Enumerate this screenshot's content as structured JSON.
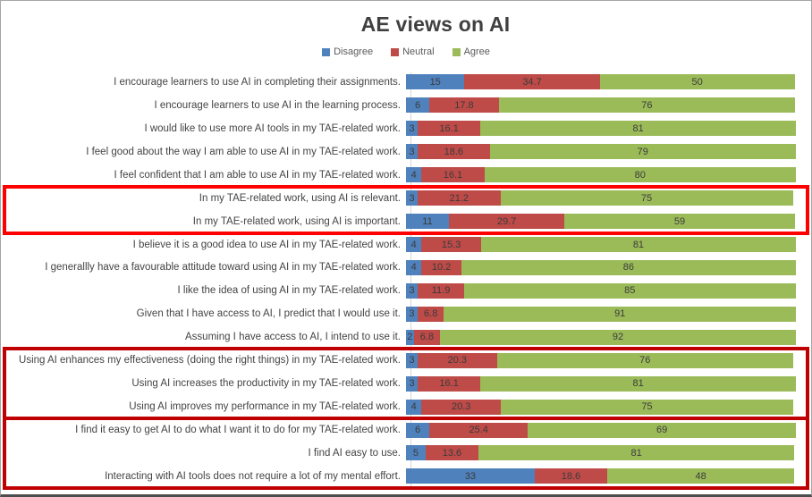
{
  "chart": {
    "title": "AE views on AI"
  },
  "chart_data": {
    "type": "bar",
    "orientation": "horizontal",
    "stacked": true,
    "title": "AE views on AI",
    "legend_position": "top",
    "xlim": [
      0,
      100
    ],
    "grid": false,
    "categories": [
      "I encourage learners to use AI in completing their assignments.",
      "I encourage learners to use AI in the learning process.",
      "I would like to use more AI tools in my TAE-related work.",
      "I feel good about the way I am able to use AI in my TAE-related work.",
      "I feel confident that I am able to use AI in my TAE-related work.",
      "In my TAE-related work, using AI is relevant.",
      "In my TAE-related work, using AI is important.",
      "I believe it is a good idea to use AI in my TAE-related work.",
      "I generallly have a favourable attitude toward using AI in my TAE-related work.",
      "I like the idea of using AI in my TAE-related work.",
      "Given that I have access to AI, I predict that I would use it.",
      "Assuming I have access to AI, I intend to use it.",
      "Using AI enhances my effectiveness (doing the right things) in my TAE-related work.",
      "Using AI increases the productivity in my TAE-related work.",
      "Using AI improves my performance in my TAE-related work.",
      "I find it easy to get AI to do what I want it to do for my TAE-related work.",
      "I find AI easy to use.",
      "Interacting with AI tools does not require a lot of my mental effort."
    ],
    "series": [
      {
        "name": "Disagree",
        "color": "#4F81BD",
        "values": [
          15,
          6,
          3,
          3,
          4,
          3,
          11,
          4,
          4,
          3,
          3,
          2,
          3,
          3,
          4,
          6,
          5,
          33
        ]
      },
      {
        "name": "Neutral",
        "color": "#BE4B48",
        "values": [
          34.7,
          17.8,
          16.1,
          18.6,
          16.1,
          21.2,
          29.7,
          15.3,
          10.2,
          11.9,
          6.8,
          6.8,
          20.3,
          16.1,
          20.3,
          25.4,
          13.6,
          18.6
        ]
      },
      {
        "name": "Agree",
        "color": "#9BBB59",
        "values": [
          50,
          76,
          81,
          79,
          80,
          75,
          59,
          81,
          86,
          85,
          91,
          92,
          76,
          81,
          75,
          69,
          81,
          48
        ]
      }
    ],
    "annotations": [
      {
        "type": "highlight-box",
        "rows": [
          6,
          7
        ],
        "color": "#FF0000"
      },
      {
        "type": "highlight-box",
        "rows": [
          13,
          15
        ],
        "color": "#C00000"
      },
      {
        "type": "highlight-box",
        "rows": [
          16,
          18
        ],
        "color": "#C00000"
      }
    ]
  }
}
